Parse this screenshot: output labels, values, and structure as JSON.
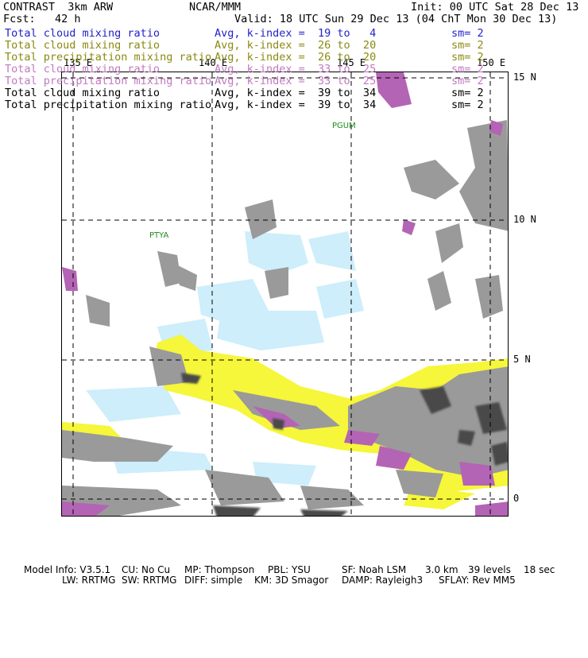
{
  "header": {
    "title_left": "CONTRAST  3km ARW",
    "title_center": "NCAR/MMM",
    "init": "Init: 00 UTC Sat 28 Dec 13",
    "fcst": "Fcst:   42 h",
    "valid": "Valid: 18 UTC Sun 29 Dec 13 (04 ChT Mon 30 Dec 13)"
  },
  "legend": [
    {
      "field": "Total cloud mixing ratio",
      "avg": "Avg, k-index =  19 to   4",
      "sm": "sm= 2",
      "color": "#2222cc"
    },
    {
      "field": "Total cloud mixing ratio",
      "avg": "Avg, k-index =  26 to  20",
      "sm": "sm= 2",
      "color": "#8a8a10"
    },
    {
      "field": "Total precipitation mixing ratio",
      "avg": "Avg, k-index =  26 to  20",
      "sm": "sm= 2",
      "color": "#8a8a10"
    },
    {
      "field": "Total cloud mixing ratio",
      "avg": "Avg, k-index =  33 to  25",
      "sm": "sm= 2",
      "color": "#c07ac0"
    },
    {
      "field": "Total precipitation mixing ratio",
      "avg": "Avg, k-index =  33 to  25",
      "sm": "sm= 2",
      "color": "#c07ac0"
    },
    {
      "field": "Total cloud mixing ratio",
      "avg": "Avg, k-index =  39 to  34",
      "sm": "sm= 2",
      "color": "#000000"
    },
    {
      "field": "Total precipitation mixing ratio",
      "avg": "Avg, k-index =  39 to  34",
      "sm": "sm= 2",
      "color": "#000000"
    }
  ],
  "map": {
    "lon_labels": [
      "135 E",
      "140 E",
      "145 E",
      "150 E"
    ],
    "lat_labels": [
      "15 N",
      "10 N",
      "5 N",
      "0"
    ],
    "stations": [
      "PGUM",
      "PTYA"
    ],
    "colors": {
      "gray": "#9a9a9a",
      "dark": "#4a4a4a",
      "yellow": "#f6f63a",
      "purple": "#b464b4",
      "cyan": "#cdeefa"
    }
  },
  "footer": {
    "row1": [
      "Model Info: V3.5.1",
      "CU: No Cu",
      "MP: Thompson",
      "PBL: YSU",
      "SF: Noah LSM",
      "3.0 km",
      "39 levels",
      "18 sec"
    ],
    "row2": [
      "LW: RRTMG",
      "SW: RRTMG",
      "DIFF: simple",
      "KM: 3D Smagor",
      "DAMP: Rayleigh3",
      "SFLAY: Rev MM5"
    ]
  }
}
